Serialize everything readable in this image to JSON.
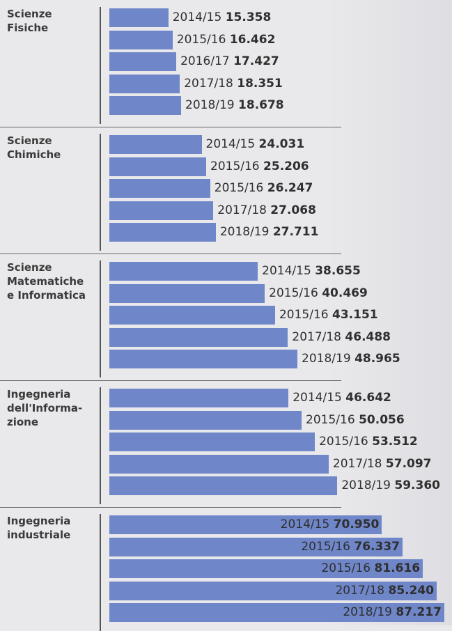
{
  "chart_data": [
    {
      "type": "bar",
      "title": [
        "Scienze",
        "Fisiche"
      ],
      "color": "#6f86c9",
      "categories": [
        "2014/15",
        "2015/16",
        "2016/17",
        "2017/18",
        "2018/19"
      ],
      "values": [
        15358,
        16462,
        17427,
        18351,
        18678
      ],
      "value_labels": [
        "15.358",
        "16.462",
        "17.427",
        "18.351",
        "18.678"
      ]
    },
    {
      "type": "bar",
      "title": [
        "Scienze",
        "Chimiche"
      ],
      "color": "#6f86c9",
      "categories": [
        "2014/15",
        "2015/16",
        "2015/16",
        "2017/18",
        "2018/19"
      ],
      "values": [
        24031,
        25206,
        26247,
        27068,
        27711
      ],
      "value_labels": [
        "24.031",
        "25.206",
        "26.247",
        "27.068",
        "27.711"
      ]
    },
    {
      "type": "bar",
      "title": [
        "Scienze",
        "Matematiche",
        "e Informatica"
      ],
      "color": "#6f86c9",
      "categories": [
        "2014/15",
        "2015/16",
        "2015/16",
        "2017/18",
        "2018/19"
      ],
      "values": [
        38655,
        40469,
        43151,
        46488,
        48965
      ],
      "value_labels": [
        "38.655",
        "40.469",
        "43.151",
        "46.488",
        "48.965"
      ]
    },
    {
      "type": "bar",
      "title": [
        "Ingegneria",
        "dell'Informa-",
        "zione"
      ],
      "color": "#6f86c9",
      "categories": [
        "2014/15",
        "2015/16",
        "2015/16",
        "2017/18",
        "2018/19"
      ],
      "values": [
        46642,
        50056,
        53512,
        57097,
        59360
      ],
      "value_labels": [
        "46.642",
        "50.056",
        "53.512",
        "57.097",
        "59.360"
      ]
    },
    {
      "type": "bar",
      "title": [
        "Ingegneria",
        "industriale"
      ],
      "color": "#6f86c9",
      "categories": [
        "2014/15",
        "2015/16",
        "2015/16",
        "2017/18",
        "2018/19"
      ],
      "values": [
        70950,
        76337,
        81616,
        85240,
        87217
      ],
      "value_labels": [
        "70.950",
        "76.337",
        "81.616",
        "85.240",
        "87.217"
      ]
    }
  ]
}
